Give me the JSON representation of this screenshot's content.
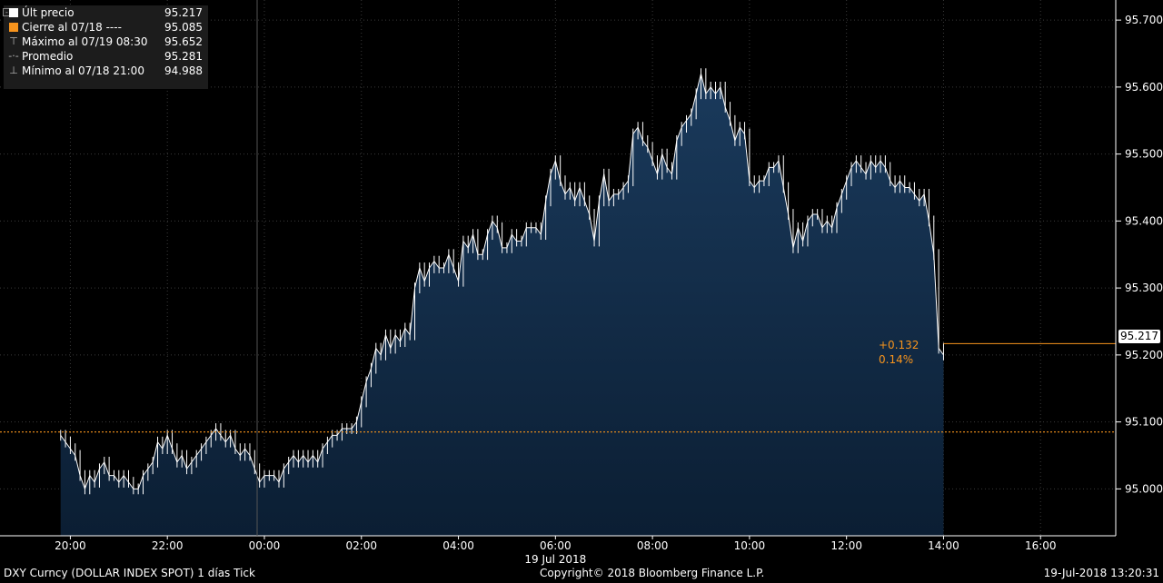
{
  "legend": {
    "rows": [
      {
        "icon": "white-square-icon",
        "label": "Últ precio",
        "value": "95.217"
      },
      {
        "icon": "orange-square-icon",
        "label": "Cierre al 07/18 ----",
        "value": "95.085"
      },
      {
        "icon": "high-marker-icon",
        "label": "Máximo al 07/19 08:30",
        "value": "95.652"
      },
      {
        "icon": "average-marker-icon",
        "label": "Promedio",
        "value": "95.281"
      },
      {
        "icon": "low-marker-icon",
        "label": "Mínimo al 07/18 21:00",
        "value": "94.988"
      }
    ]
  },
  "last_price_tag": "95.217",
  "change": {
    "abs": "+0.132",
    "pct": "0.14%"
  },
  "footer": {
    "left": "DXY Curncy (DOLLAR INDEX SPOT) 1 días  Tick",
    "center": "Copyright© 2018 Bloomberg Finance L.P.",
    "right": "19-Jul-2018 13:20:31"
  },
  "colors": {
    "area_fill_top": "#1a3a5c",
    "area_fill_bottom": "#0b1e33",
    "price_line": "#ffffff",
    "close_line": "#f7941d",
    "background": "#000000"
  },
  "chart_data": {
    "type": "area",
    "series_name": "DXY Curncy",
    "x_unit": "hours since 18 Jul 2018 18:00",
    "x_ticks": [
      {
        "x": 2,
        "label": "20:00"
      },
      {
        "x": 4,
        "label": "22:00"
      },
      {
        "x": 6,
        "label": "00:00"
      },
      {
        "x": 8,
        "label": "02:00"
      },
      {
        "x": 10,
        "label": "04:00"
      },
      {
        "x": 12,
        "label": "06:00"
      },
      {
        "x": 14,
        "label": "08:00"
      },
      {
        "x": 16,
        "label": "10:00"
      },
      {
        "x": 18,
        "label": "12:00"
      },
      {
        "x": 20,
        "label": "14:00"
      },
      {
        "x": 22,
        "label": "16:00"
      }
    ],
    "x_date_label": "19 Jul 2018",
    "xlim": [
      0.55,
      23.55
    ],
    "ylim": [
      94.93,
      95.73
    ],
    "y_ticks": [
      "95.000",
      "95.100",
      "95.200",
      "95.300",
      "95.400",
      "95.500",
      "95.600",
      "95.700"
    ],
    "close_reference": 95.085,
    "last_value": 95.217,
    "points": [
      [
        1.8,
        95.08
      ],
      [
        1.9,
        95.07
      ],
      [
        2.0,
        95.06
      ],
      [
        2.1,
        95.05
      ],
      [
        2.2,
        95.02
      ],
      [
        2.3,
        95.0
      ],
      [
        2.4,
        95.02
      ],
      [
        2.5,
        95.01
      ],
      [
        2.6,
        95.03
      ],
      [
        2.7,
        95.04
      ],
      [
        2.8,
        95.02
      ],
      [
        2.9,
        95.02
      ],
      [
        3.0,
        95.01
      ],
      [
        3.1,
        95.02
      ],
      [
        3.2,
        95.01
      ],
      [
        3.3,
        95.0
      ],
      [
        3.4,
        95.0
      ],
      [
        3.5,
        95.02
      ],
      [
        3.6,
        95.03
      ],
      [
        3.7,
        95.04
      ],
      [
        3.8,
        95.07
      ],
      [
        3.9,
        95.06
      ],
      [
        4.0,
        95.08
      ],
      [
        4.1,
        95.06
      ],
      [
        4.2,
        95.04
      ],
      [
        4.3,
        95.05
      ],
      [
        4.4,
        95.03
      ],
      [
        4.5,
        95.04
      ],
      [
        4.6,
        95.05
      ],
      [
        4.7,
        95.06
      ],
      [
        4.8,
        95.07
      ],
      [
        4.9,
        95.08
      ],
      [
        5.0,
        95.09
      ],
      [
        5.1,
        95.08
      ],
      [
        5.2,
        95.07
      ],
      [
        5.3,
        95.08
      ],
      [
        5.4,
        95.06
      ],
      [
        5.5,
        95.05
      ],
      [
        5.6,
        95.06
      ],
      [
        5.7,
        95.05
      ],
      [
        5.8,
        95.03
      ],
      [
        5.9,
        95.01
      ],
      [
        6.0,
        95.02
      ],
      [
        6.1,
        95.02
      ],
      [
        6.2,
        95.02
      ],
      [
        6.3,
        95.01
      ],
      [
        6.4,
        95.03
      ],
      [
        6.5,
        95.04
      ],
      [
        6.6,
        95.05
      ],
      [
        6.7,
        95.04
      ],
      [
        6.8,
        95.05
      ],
      [
        6.9,
        95.04
      ],
      [
        7.0,
        95.05
      ],
      [
        7.1,
        95.04
      ],
      [
        7.2,
        95.06
      ],
      [
        7.3,
        95.07
      ],
      [
        7.4,
        95.08
      ],
      [
        7.5,
        95.08
      ],
      [
        7.6,
        95.09
      ],
      [
        7.7,
        95.09
      ],
      [
        7.8,
        95.09
      ],
      [
        7.9,
        95.1
      ],
      [
        8.0,
        95.13
      ],
      [
        8.1,
        95.16
      ],
      [
        8.2,
        95.18
      ],
      [
        8.3,
        95.21
      ],
      [
        8.4,
        95.2
      ],
      [
        8.5,
        95.23
      ],
      [
        8.6,
        95.21
      ],
      [
        8.7,
        95.23
      ],
      [
        8.8,
        95.22
      ],
      [
        8.9,
        95.24
      ],
      [
        9.0,
        95.23
      ],
      [
        9.1,
        95.3
      ],
      [
        9.2,
        95.33
      ],
      [
        9.3,
        95.31
      ],
      [
        9.4,
        95.33
      ],
      [
        9.5,
        95.34
      ],
      [
        9.6,
        95.33
      ],
      [
        9.7,
        95.33
      ],
      [
        9.8,
        95.35
      ],
      [
        9.9,
        95.33
      ],
      [
        10.0,
        95.31
      ],
      [
        10.1,
        95.37
      ],
      [
        10.2,
        95.36
      ],
      [
        10.3,
        95.38
      ],
      [
        10.4,
        95.35
      ],
      [
        10.5,
        95.35
      ],
      [
        10.6,
        95.38
      ],
      [
        10.7,
        95.4
      ],
      [
        10.8,
        95.39
      ],
      [
        10.9,
        95.36
      ],
      [
        11.0,
        95.36
      ],
      [
        11.1,
        95.38
      ],
      [
        11.2,
        95.37
      ],
      [
        11.3,
        95.37
      ],
      [
        11.4,
        95.39
      ],
      [
        11.5,
        95.39
      ],
      [
        11.6,
        95.39
      ],
      [
        11.7,
        95.38
      ],
      [
        11.8,
        95.43
      ],
      [
        11.9,
        95.47
      ],
      [
        12.0,
        95.49
      ],
      [
        12.1,
        95.46
      ],
      [
        12.2,
        95.44
      ],
      [
        12.3,
        95.45
      ],
      [
        12.4,
        95.43
      ],
      [
        12.5,
        95.45
      ],
      [
        12.6,
        95.43
      ],
      [
        12.7,
        95.41
      ],
      [
        12.8,
        95.37
      ],
      [
        12.9,
        95.43
      ],
      [
        13.0,
        95.47
      ],
      [
        13.1,
        95.43
      ],
      [
        13.2,
        95.44
      ],
      [
        13.3,
        95.44
      ],
      [
        13.4,
        95.45
      ],
      [
        13.5,
        95.46
      ],
      [
        13.6,
        95.53
      ],
      [
        13.7,
        95.54
      ],
      [
        13.8,
        95.52
      ],
      [
        13.9,
        95.51
      ],
      [
        14.0,
        95.49
      ],
      [
        14.1,
        95.47
      ],
      [
        14.2,
        95.5
      ],
      [
        14.3,
        95.48
      ],
      [
        14.4,
        95.47
      ],
      [
        14.5,
        95.52
      ],
      [
        14.6,
        95.54
      ],
      [
        14.7,
        95.55
      ],
      [
        14.8,
        95.56
      ],
      [
        14.9,
        95.59
      ],
      [
        15.0,
        95.62
      ],
      [
        15.1,
        95.59
      ],
      [
        15.2,
        95.6
      ],
      [
        15.3,
        95.59
      ],
      [
        15.4,
        95.6
      ],
      [
        15.5,
        95.57
      ],
      [
        15.6,
        95.55
      ],
      [
        15.7,
        95.52
      ],
      [
        15.8,
        95.54
      ],
      [
        15.9,
        95.53
      ],
      [
        16.0,
        95.46
      ],
      [
        16.1,
        95.45
      ],
      [
        16.2,
        95.46
      ],
      [
        16.3,
        95.46
      ],
      [
        16.4,
        95.48
      ],
      [
        16.5,
        95.48
      ],
      [
        16.6,
        95.49
      ],
      [
        16.7,
        95.45
      ],
      [
        16.8,
        95.41
      ],
      [
        16.9,
        95.36
      ],
      [
        17.0,
        95.39
      ],
      [
        17.1,
        95.37
      ],
      [
        17.2,
        95.4
      ],
      [
        17.3,
        95.41
      ],
      [
        17.4,
        95.41
      ],
      [
        17.5,
        95.39
      ],
      [
        17.6,
        95.4
      ],
      [
        17.7,
        95.39
      ],
      [
        17.8,
        95.42
      ],
      [
        17.9,
        95.44
      ],
      [
        18.0,
        95.46
      ],
      [
        18.1,
        95.48
      ],
      [
        18.2,
        95.49
      ],
      [
        18.3,
        95.48
      ],
      [
        18.4,
        95.47
      ],
      [
        18.5,
        95.49
      ],
      [
        18.6,
        95.48
      ],
      [
        18.7,
        95.49
      ],
      [
        18.8,
        95.48
      ],
      [
        18.9,
        95.46
      ],
      [
        19.0,
        95.45
      ],
      [
        19.1,
        95.46
      ],
      [
        19.2,
        95.45
      ],
      [
        19.3,
        95.45
      ],
      [
        19.4,
        95.44
      ],
      [
        19.5,
        95.43
      ],
      [
        19.6,
        95.44
      ],
      [
        19.7,
        95.4
      ],
      [
        19.8,
        95.35
      ],
      [
        19.9,
        95.21
      ],
      [
        20.0,
        95.2
      ]
    ]
  }
}
